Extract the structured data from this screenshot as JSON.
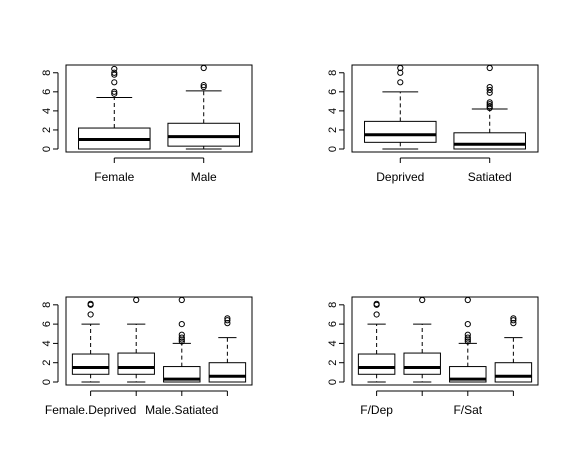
{
  "chart_data": [
    {
      "type": "boxplot",
      "ylim": [
        0,
        8.5
      ],
      "yticks": [
        0,
        2,
        4,
        6,
        8
      ],
      "tick_labels": [
        "Female",
        "Male"
      ],
      "boxes": [
        {
          "min": 0,
          "q1": 0,
          "median": 1.0,
          "q3": 2.2,
          "max": 5.4,
          "outliers": [
            5.8,
            6.0,
            7.0,
            7.8,
            8.0,
            8.4
          ]
        },
        {
          "min": 0,
          "q1": 0.3,
          "median": 1.3,
          "q3": 2.7,
          "max": 6.1,
          "outliers": [
            6.5,
            6.7,
            8.5
          ]
        }
      ]
    },
    {
      "type": "boxplot",
      "ylim": [
        0,
        8.5
      ],
      "yticks": [
        0,
        2,
        4,
        6,
        8
      ],
      "tick_labels": [
        "Deprived",
        "Satiated"
      ],
      "boxes": [
        {
          "min": 0,
          "q1": 0.7,
          "median": 1.5,
          "q3": 2.9,
          "max": 6.0,
          "outliers": [
            7.0,
            8.0,
            8.5
          ]
        },
        {
          "min": 0,
          "q1": 0,
          "median": 0.5,
          "q3": 1.7,
          "max": 4.2,
          "outliers": [
            4.3,
            4.5,
            4.7,
            4.9,
            5.9,
            6.2,
            6.5,
            8.5
          ]
        }
      ]
    },
    {
      "type": "boxplot",
      "ylim": [
        0,
        8.5
      ],
      "yticks": [
        0,
        2,
        4,
        6,
        8
      ],
      "tick_labels": [
        "Female.Deprived",
        "",
        "Male.Satiated",
        ""
      ],
      "boxes": [
        {
          "min": 0,
          "q1": 0.8,
          "median": 1.5,
          "q3": 2.9,
          "max": 6.0,
          "outliers": [
            7.0,
            8.0,
            8.1
          ]
        },
        {
          "min": 0,
          "q1": 0.8,
          "median": 1.5,
          "q3": 3.0,
          "max": 6.0,
          "outliers": [
            8.5
          ]
        },
        {
          "min": 0,
          "q1": 0,
          "median": 0.3,
          "q3": 1.6,
          "max": 4.0,
          "outliers": [
            4.2,
            4.4,
            4.6,
            4.9,
            6.0,
            8.5
          ]
        },
        {
          "min": 0,
          "q1": 0,
          "median": 0.6,
          "q3": 2.0,
          "max": 4.6,
          "outliers": [
            6.1,
            6.4,
            6.6
          ]
        }
      ]
    },
    {
      "type": "boxplot",
      "ylim": [
        0,
        8.5
      ],
      "yticks": [
        0,
        2,
        4,
        6,
        8
      ],
      "tick_labels": [
        "F/Dep",
        "",
        "F/Sat",
        ""
      ],
      "boxes": [
        {
          "min": 0,
          "q1": 0.8,
          "median": 1.5,
          "q3": 2.9,
          "max": 6.0,
          "outliers": [
            7.0,
            8.0,
            8.1
          ]
        },
        {
          "min": 0,
          "q1": 0.8,
          "median": 1.5,
          "q3": 3.0,
          "max": 6.0,
          "outliers": [
            8.5
          ]
        },
        {
          "min": 0,
          "q1": 0,
          "median": 0.3,
          "q3": 1.6,
          "max": 4.0,
          "outliers": [
            4.2,
            4.4,
            4.6,
            4.9,
            6.0,
            8.5
          ]
        },
        {
          "min": 0,
          "q1": 0,
          "median": 0.6,
          "q3": 2.0,
          "max": 4.6,
          "outliers": [
            6.1,
            6.4,
            6.6
          ]
        }
      ]
    }
  ]
}
